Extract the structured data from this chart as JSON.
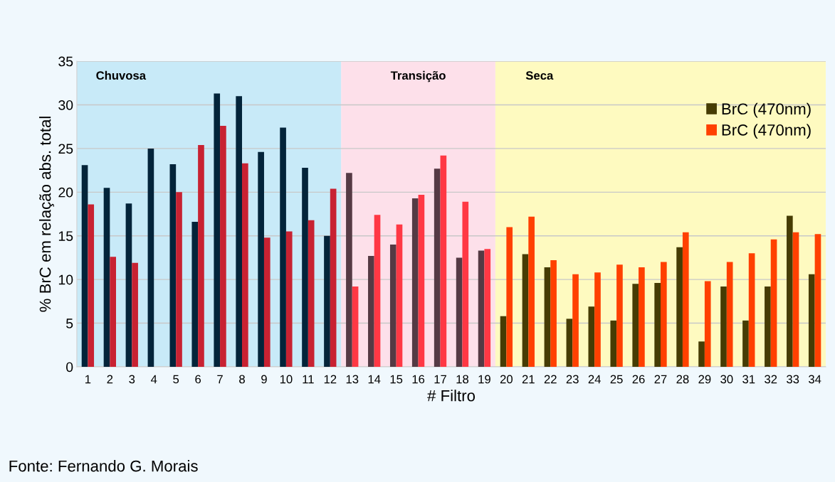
{
  "chart_data": {
    "type": "bar",
    "xlabel": "# Filtro",
    "ylabel": "% BrC em relação abs. total",
    "categories": [
      "1",
      "2",
      "3",
      "4",
      "5",
      "6",
      "7",
      "8",
      "9",
      "10",
      "11",
      "12",
      "13",
      "14",
      "15",
      "16",
      "17",
      "18",
      "19",
      "20",
      "21",
      "22",
      "23",
      "24",
      "25",
      "26",
      "27",
      "28",
      "29",
      "30",
      "31",
      "32",
      "33",
      "34"
    ],
    "series": [
      {
        "name": "BrC (470nm)",
        "color": "#463c04",
        "values": [
          23.1,
          20.5,
          18.7,
          25.0,
          23.2,
          16.6,
          31.3,
          31.0,
          24.6,
          27.4,
          22.8,
          15.0,
          22.2,
          12.7,
          14.0,
          19.3,
          22.7,
          12.5,
          13.3,
          5.8,
          12.9,
          11.4,
          5.5,
          6.9,
          5.3,
          9.5,
          9.6,
          13.7,
          2.9,
          9.2,
          5.3,
          9.2,
          17.3,
          10.6
        ],
        "colors": [
          "#03243a",
          "#03243a",
          "#03243a",
          "#03243a",
          "#03243a",
          "#03243a",
          "#03243a",
          "#03243a",
          "#03243a",
          "#03243a",
          "#03243a",
          "#03243a",
          "#553a44",
          "#553a44",
          "#553a44",
          "#553a44",
          "#553a44",
          "#553a44",
          "#553a44",
          "#463c04",
          "#463c04",
          "#463c04",
          "#463c04",
          "#463c04",
          "#463c04",
          "#463c04",
          "#463c04",
          "#463c04",
          "#463c04",
          "#463c04",
          "#463c04",
          "#463c04",
          "#463c04",
          "#463c04"
        ]
      },
      {
        "name": "BrC (470nm)",
        "color": "#ff4000",
        "values": [
          18.6,
          12.6,
          11.9,
          null,
          20.0,
          25.4,
          27.6,
          23.3,
          14.8,
          15.5,
          16.8,
          20.4,
          9.2,
          17.4,
          16.3,
          19.7,
          24.2,
          18.9,
          13.5,
          16.0,
          17.2,
          12.2,
          10.6,
          10.8,
          11.7,
          11.4,
          12.0,
          15.4,
          9.8,
          12.0,
          13.0,
          14.6,
          15.4,
          15.2
        ],
        "colors": [
          "#c82232",
          "#c82232",
          "#c82232",
          "#c82232",
          "#c82232",
          "#c82232",
          "#c82232",
          "#c82232",
          "#c82232",
          "#c82232",
          "#c82232",
          "#c82232",
          "#ff3844",
          "#ff3844",
          "#ff3844",
          "#ff3844",
          "#ff3844",
          "#ff3844",
          "#ff3844",
          "#ff4000",
          "#ff4000",
          "#ff4000",
          "#ff4000",
          "#ff4000",
          "#ff4000",
          "#ff4000",
          "#ff4000",
          "#ff4000",
          "#ff4000",
          "#ff4000",
          "#ff4000",
          "#ff4000",
          "#ff4000",
          "#ff4000"
        ]
      }
    ],
    "bands": [
      {
        "axis": "x",
        "from": "1",
        "to": "12",
        "label": "Chuvosa",
        "color": "#c8eaf8"
      },
      {
        "axis": "x",
        "from": "13",
        "to": "19",
        "label": "Transição",
        "color": "#fde0ea"
      },
      {
        "axis": "x",
        "from": "20",
        "to": "34",
        "label": "Seca",
        "color": "#fefac0"
      }
    ],
    "ylim": [
      0,
      35
    ],
    "yticks": [
      0,
      5,
      10,
      15,
      20,
      25,
      30,
      35
    ],
    "grid": "y",
    "legend": "top right",
    "annotations": [
      "Fonte: Fernando G. Morais"
    ]
  }
}
